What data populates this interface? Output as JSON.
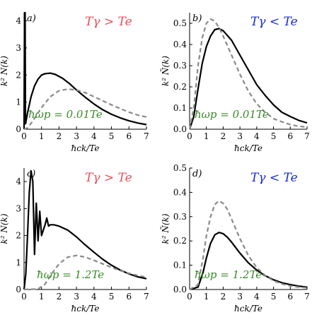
{
  "colors": {
    "red_label": "#e8505a",
    "blue_label": "#1a2bd6",
    "green_label": "#3a8a2a",
    "dashed": "#8a8a8a",
    "solid": "#000000"
  },
  "chart_data": [
    {
      "type": "line",
      "panel": "a)",
      "temperature_label": "Tγ > Te",
      "annotation": "ħωp = 0.01Te",
      "xlabel": "ħck/Te",
      "ylabel": "k² Ñ(k)",
      "xlim": [
        0,
        7
      ],
      "ylim": [
        0,
        4.3
      ],
      "xticks": [
        0,
        1,
        2,
        3,
        4,
        5,
        6,
        7
      ],
      "yticks": [
        0,
        1,
        2,
        3,
        4
      ],
      "ytick_labels": [
        "0",
        "1",
        "2",
        "3",
        "4"
      ],
      "series": [
        {
          "style": "solid",
          "x": [
            0,
            0.03,
            0.06,
            0.08,
            0.1,
            0.2,
            0.4,
            0.6,
            0.8,
            1.0,
            1.2,
            1.5,
            1.8,
            2.2,
            2.6,
            3.0,
            3.5,
            4.0,
            4.5,
            5.0,
            5.5,
            6.0,
            6.5,
            7.0
          ],
          "y": [
            0,
            4.3,
            4.3,
            0.2,
            0.25,
            0.6,
            1.2,
            1.6,
            1.85,
            2.0,
            2.05,
            2.07,
            2.02,
            1.88,
            1.68,
            1.45,
            1.18,
            0.93,
            0.72,
            0.55,
            0.42,
            0.31,
            0.23,
            0.17
          ]
        },
        {
          "style": "dashed",
          "x": [
            0,
            0.2,
            0.5,
            1.0,
            1.5,
            2.0,
            2.5,
            3.0,
            3.5,
            4.0,
            4.5,
            5.0,
            5.5,
            6.0,
            6.5,
            7.0
          ],
          "y": [
            0,
            0.05,
            0.3,
            0.8,
            1.2,
            1.42,
            1.48,
            1.45,
            1.35,
            1.2,
            1.05,
            0.9,
            0.76,
            0.63,
            0.52,
            0.45
          ]
        }
      ]
    },
    {
      "type": "line",
      "panel": "b)",
      "temperature_label": "Tγ < Te",
      "annotation": "ħωp = 0.01Te",
      "xlabel": "ħck/Te",
      "ylabel": "k² Ñ(k)",
      "xlim": [
        0,
        7
      ],
      "ylim": [
        0,
        0.55
      ],
      "xticks": [
        0,
        1,
        2,
        3,
        4,
        5,
        6,
        7
      ],
      "yticks": [
        0,
        0.1,
        0.2,
        0.3,
        0.4,
        0.5
      ],
      "ytick_labels": [
        "0.0",
        "0.1",
        "0.2",
        "0.3",
        "0.4",
        "0.5"
      ],
      "series": [
        {
          "style": "solid",
          "x": [
            0,
            0.25,
            0.5,
            0.75,
            1.0,
            1.25,
            1.5,
            1.75,
            2.0,
            2.5,
            3.0,
            3.5,
            4.0,
            4.5,
            5.0,
            5.5,
            6.0,
            6.5,
            7.0
          ],
          "y": [
            0,
            0.06,
            0.19,
            0.31,
            0.39,
            0.44,
            0.47,
            0.475,
            0.465,
            0.42,
            0.35,
            0.28,
            0.21,
            0.16,
            0.115,
            0.08,
            0.06,
            0.042,
            0.03
          ]
        },
        {
          "style": "dashed",
          "x": [
            0,
            0.25,
            0.5,
            0.75,
            1.0,
            1.25,
            1.5,
            1.75,
            2.0,
            2.5,
            3.0,
            3.5,
            4.0,
            4.5,
            5.0,
            5.5,
            6.0,
            6.5,
            7.0
          ],
          "y": [
            0,
            0.1,
            0.3,
            0.43,
            0.5,
            0.52,
            0.51,
            0.48,
            0.44,
            0.35,
            0.26,
            0.18,
            0.12,
            0.08,
            0.05,
            0.035,
            0.022,
            0.014,
            0.01
          ]
        }
      ]
    },
    {
      "type": "line",
      "panel": "c)",
      "temperature_label": "Tγ > Te",
      "annotation": "ħωp = 1.2Te",
      "xlabel": "ħck/Te",
      "ylabel": "k² Ñ(k)",
      "xlim": [
        0,
        7
      ],
      "ylim": [
        0,
        4.5
      ],
      "xticks": [
        0,
        1,
        2,
        3,
        4,
        5,
        6,
        7
      ],
      "yticks": [
        0,
        1,
        2,
        3,
        4
      ],
      "ytick_labels": [
        "0",
        "1",
        "2",
        "3",
        "4"
      ],
      "series": [
        {
          "style": "solid",
          "x": [
            0,
            0.1,
            0.2,
            0.3,
            0.4,
            0.5,
            0.6,
            0.7,
            0.8,
            0.9,
            1.0,
            1.1,
            1.2,
            1.3,
            1.4,
            1.5,
            1.7,
            2.0,
            2.5,
            3.0,
            3.5,
            4.0,
            4.5,
            5.0,
            5.5,
            6.0,
            6.5,
            7.0
          ],
          "y": [
            0,
            0.6,
            2.0,
            3.6,
            4.4,
            4.0,
            1.3,
            3.2,
            1.8,
            2.9,
            2.0,
            2.2,
            2.4,
            2.65,
            2.35,
            2.4,
            2.4,
            2.35,
            2.2,
            1.95,
            1.65,
            1.38,
            1.12,
            0.9,
            0.72,
            0.58,
            0.47,
            0.4
          ]
        },
        {
          "style": "dashed",
          "x": [
            0,
            0.8,
            1.2,
            1.6,
            2.0,
            2.5,
            3.0,
            3.5,
            4.0,
            4.5,
            5.0,
            5.5,
            6.0,
            6.5,
            7.0
          ],
          "y": [
            0,
            0.02,
            0.2,
            0.6,
            0.95,
            1.2,
            1.26,
            1.2,
            1.08,
            0.95,
            0.82,
            0.7,
            0.6,
            0.52,
            0.46
          ]
        }
      ]
    },
    {
      "type": "line",
      "panel": "d)",
      "temperature_label": "Tγ < Te",
      "annotation": "ħωp = 1.2Te",
      "xlabel": "ħck/Te",
      "ylabel": "k² Ñ(k)",
      "xlim": [
        0,
        7
      ],
      "ylim": [
        0,
        0.5
      ],
      "xticks": [
        0,
        1,
        2,
        3,
        4,
        5,
        6,
        7
      ],
      "yticks": [
        0,
        0.1,
        0.2,
        0.3,
        0.4,
        0.5
      ],
      "ytick_labels": [
        "0.0",
        "0.1",
        "0.2",
        "0.3",
        "0.4",
        "0.5"
      ],
      "series": [
        {
          "style": "solid",
          "x": [
            0,
            0.5,
            0.8,
            1.0,
            1.25,
            1.5,
            1.75,
            2.0,
            2.25,
            2.5,
            3.0,
            3.5,
            4.0,
            4.5,
            5.0,
            5.5,
            6.0,
            6.5,
            7.0
          ],
          "y": [
            0,
            0.01,
            0.07,
            0.13,
            0.19,
            0.225,
            0.235,
            0.23,
            0.215,
            0.195,
            0.15,
            0.11,
            0.08,
            0.057,
            0.04,
            0.028,
            0.02,
            0.014,
            0.01
          ]
        },
        {
          "style": "dashed",
          "x": [
            0,
            0.5,
            0.8,
            1.0,
            1.25,
            1.5,
            1.75,
            2.0,
            2.25,
            2.5,
            3.0,
            3.5,
            4.0,
            4.5,
            5.0,
            5.5,
            6.0,
            6.5,
            7.0
          ],
          "y": [
            0,
            0.02,
            0.13,
            0.22,
            0.3,
            0.35,
            0.365,
            0.355,
            0.33,
            0.29,
            0.21,
            0.14,
            0.09,
            0.058,
            0.036,
            0.023,
            0.015,
            0.01,
            0.007
          ]
        }
      ]
    }
  ]
}
